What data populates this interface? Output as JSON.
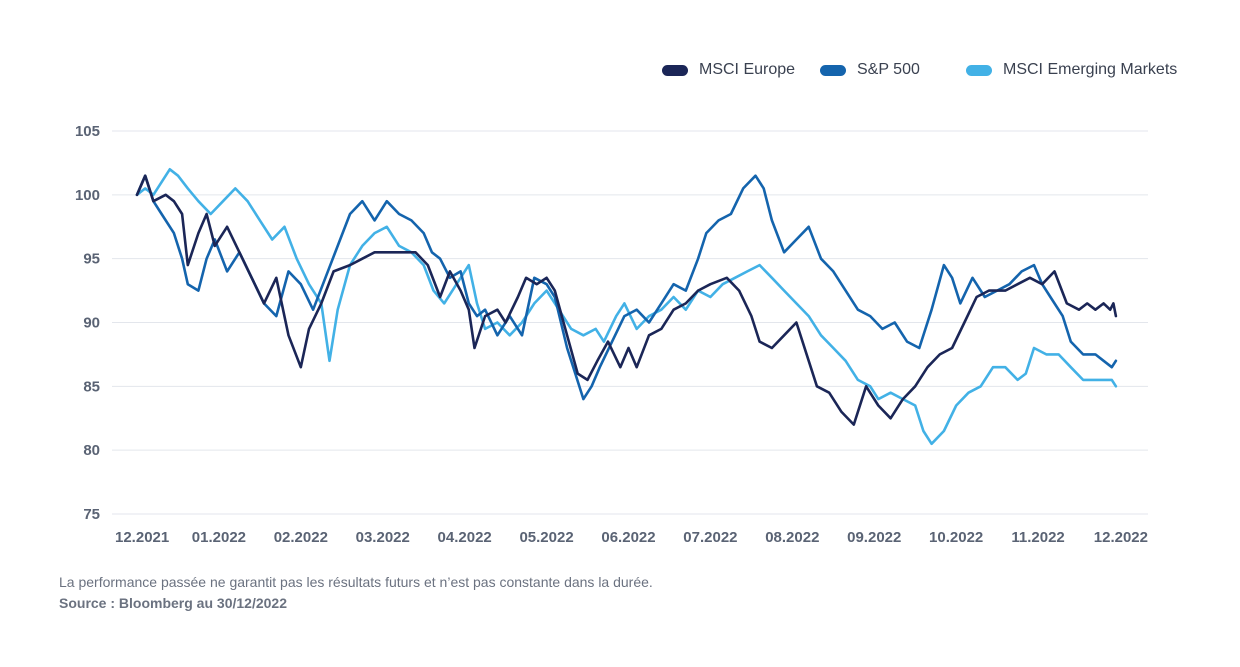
{
  "chart_data": {
    "type": "line",
    "x_ticks": [
      "12.2021",
      "01.2022",
      "02.2022",
      "03.2022",
      "04.2022",
      "05.2022",
      "06.2022",
      "07.2022",
      "08.2022",
      "09.2022",
      "10.2022",
      "11.2022",
      "12.2022"
    ],
    "y_ticks": [
      75,
      80,
      85,
      90,
      95,
      100,
      105
    ],
    "ylim": [
      75,
      105
    ],
    "grid": true,
    "legend_position": "top-right",
    "series": [
      {
        "name": "MSCI Europe",
        "color": "#1b2657",
        "points": [
          [
            0,
            100.0
          ],
          [
            0.1,
            101.5
          ],
          [
            0.2,
            99.5
          ],
          [
            0.35,
            100.0
          ],
          [
            0.45,
            99.5
          ],
          [
            0.55,
            98.5
          ],
          [
            0.62,
            94.5
          ],
          [
            0.75,
            97.0
          ],
          [
            0.85,
            98.5
          ],
          [
            0.95,
            96.0
          ],
          [
            1.1,
            97.5
          ],
          [
            1.25,
            95.5
          ],
          [
            1.4,
            93.5
          ],
          [
            1.55,
            91.5
          ],
          [
            1.7,
            93.5
          ],
          [
            1.85,
            89.0
          ],
          [
            2.0,
            86.5
          ],
          [
            2.1,
            89.5
          ],
          [
            2.25,
            91.5
          ],
          [
            2.4,
            94.0
          ],
          [
            2.6,
            94.5
          ],
          [
            2.75,
            95.0
          ],
          [
            2.9,
            95.5
          ],
          [
            3.05,
            95.5
          ],
          [
            3.25,
            95.5
          ],
          [
            3.4,
            95.5
          ],
          [
            3.55,
            94.5
          ],
          [
            3.7,
            92.0
          ],
          [
            3.82,
            94.0
          ],
          [
            3.95,
            92.5
          ],
          [
            4.05,
            91.0
          ],
          [
            4.12,
            88.0
          ],
          [
            4.25,
            90.5
          ],
          [
            4.4,
            91.0
          ],
          [
            4.5,
            90.0
          ],
          [
            4.65,
            92.0
          ],
          [
            4.75,
            93.5
          ],
          [
            4.88,
            93.0
          ],
          [
            5.0,
            93.5
          ],
          [
            5.1,
            92.5
          ],
          [
            5.25,
            89.0
          ],
          [
            5.38,
            86.0
          ],
          [
            5.5,
            85.5
          ],
          [
            5.62,
            87.0
          ],
          [
            5.75,
            88.5
          ],
          [
            5.9,
            86.5
          ],
          [
            6.0,
            88.0
          ],
          [
            6.1,
            86.5
          ],
          [
            6.25,
            89.0
          ],
          [
            6.4,
            89.5
          ],
          [
            6.55,
            91.0
          ],
          [
            6.7,
            91.5
          ],
          [
            6.85,
            92.5
          ],
          [
            7.0,
            93.0
          ],
          [
            7.2,
            93.5
          ],
          [
            7.35,
            92.5
          ],
          [
            7.5,
            90.5
          ],
          [
            7.6,
            88.5
          ],
          [
            7.75,
            88.0
          ],
          [
            7.9,
            89.0
          ],
          [
            8.05,
            90.0
          ],
          [
            8.2,
            87.0
          ],
          [
            8.3,
            85.0
          ],
          [
            8.45,
            84.5
          ],
          [
            8.6,
            83.0
          ],
          [
            8.75,
            82.0
          ],
          [
            8.9,
            85.0
          ],
          [
            9.05,
            83.5
          ],
          [
            9.2,
            82.5
          ],
          [
            9.35,
            84.0
          ],
          [
            9.5,
            85.0
          ],
          [
            9.65,
            86.5
          ],
          [
            9.8,
            87.5
          ],
          [
            9.95,
            88.0
          ],
          [
            10.1,
            90.0
          ],
          [
            10.25,
            92.0
          ],
          [
            10.4,
            92.5
          ],
          [
            10.6,
            92.5
          ],
          [
            10.75,
            93.0
          ],
          [
            10.9,
            93.5
          ],
          [
            11.05,
            93.0
          ],
          [
            11.2,
            94.0
          ],
          [
            11.35,
            91.5
          ],
          [
            11.5,
            91.0
          ],
          [
            11.6,
            91.5
          ],
          [
            11.7,
            91.0
          ],
          [
            11.8,
            91.5
          ],
          [
            11.88,
            91.0
          ],
          [
            11.92,
            91.5
          ],
          [
            11.95,
            90.5
          ]
        ]
      },
      {
        "name": "S&P 500",
        "color": "#1464ad",
        "points": [
          [
            0,
            100.0
          ],
          [
            0.1,
            101.5
          ],
          [
            0.2,
            99.5
          ],
          [
            0.3,
            98.5
          ],
          [
            0.45,
            97.0
          ],
          [
            0.55,
            95.0
          ],
          [
            0.62,
            93.0
          ],
          [
            0.75,
            92.5
          ],
          [
            0.85,
            95.0
          ],
          [
            0.95,
            96.5
          ],
          [
            1.1,
            94.0
          ],
          [
            1.25,
            95.5
          ],
          [
            1.4,
            93.5
          ],
          [
            1.55,
            91.5
          ],
          [
            1.7,
            90.5
          ],
          [
            1.85,
            94.0
          ],
          [
            2.0,
            93.0
          ],
          [
            2.15,
            91.0
          ],
          [
            2.3,
            93.5
          ],
          [
            2.45,
            96.0
          ],
          [
            2.6,
            98.5
          ],
          [
            2.75,
            99.5
          ],
          [
            2.9,
            98.0
          ],
          [
            3.05,
            99.5
          ],
          [
            3.2,
            98.5
          ],
          [
            3.35,
            98.0
          ],
          [
            3.5,
            97.0
          ],
          [
            3.6,
            95.5
          ],
          [
            3.7,
            95.0
          ],
          [
            3.82,
            93.5
          ],
          [
            3.95,
            94.0
          ],
          [
            4.05,
            91.5
          ],
          [
            4.15,
            90.5
          ],
          [
            4.25,
            91.0
          ],
          [
            4.4,
            89.0
          ],
          [
            4.55,
            90.5
          ],
          [
            4.7,
            89.0
          ],
          [
            4.85,
            93.5
          ],
          [
            5.0,
            93.0
          ],
          [
            5.1,
            92.0
          ],
          [
            5.25,
            88.0
          ],
          [
            5.35,
            86.0
          ],
          [
            5.45,
            84.0
          ],
          [
            5.55,
            85.0
          ],
          [
            5.65,
            86.5
          ],
          [
            5.8,
            88.5
          ],
          [
            5.95,
            90.5
          ],
          [
            6.1,
            91.0
          ],
          [
            6.25,
            90.0
          ],
          [
            6.4,
            91.5
          ],
          [
            6.55,
            93.0
          ],
          [
            6.7,
            92.5
          ],
          [
            6.85,
            95.0
          ],
          [
            6.95,
            97.0
          ],
          [
            7.1,
            98.0
          ],
          [
            7.25,
            98.5
          ],
          [
            7.4,
            100.5
          ],
          [
            7.55,
            101.5
          ],
          [
            7.65,
            100.5
          ],
          [
            7.75,
            98.0
          ],
          [
            7.9,
            95.5
          ],
          [
            8.05,
            96.5
          ],
          [
            8.2,
            97.5
          ],
          [
            8.35,
            95.0
          ],
          [
            8.5,
            94.0
          ],
          [
            8.65,
            92.5
          ],
          [
            8.8,
            91.0
          ],
          [
            8.95,
            90.5
          ],
          [
            9.1,
            89.5
          ],
          [
            9.25,
            90.0
          ],
          [
            9.4,
            88.5
          ],
          [
            9.55,
            88.0
          ],
          [
            9.7,
            91.0
          ],
          [
            9.85,
            94.5
          ],
          [
            9.95,
            93.5
          ],
          [
            10.05,
            91.5
          ],
          [
            10.2,
            93.5
          ],
          [
            10.35,
            92.0
          ],
          [
            10.5,
            92.5
          ],
          [
            10.65,
            93.0
          ],
          [
            10.8,
            94.0
          ],
          [
            10.95,
            94.5
          ],
          [
            11.05,
            93.0
          ],
          [
            11.15,
            92.0
          ],
          [
            11.3,
            90.5
          ],
          [
            11.4,
            88.5
          ],
          [
            11.55,
            87.5
          ],
          [
            11.7,
            87.5
          ],
          [
            11.8,
            87.0
          ],
          [
            11.9,
            86.5
          ],
          [
            11.95,
            87.0
          ]
        ]
      },
      {
        "name": "MSCI Emerging Markets",
        "color": "#42b1e6",
        "points": [
          [
            0,
            100.0
          ],
          [
            0.1,
            100.5
          ],
          [
            0.2,
            100.0
          ],
          [
            0.3,
            101.0
          ],
          [
            0.4,
            102.0
          ],
          [
            0.5,
            101.5
          ],
          [
            0.62,
            100.5
          ],
          [
            0.75,
            99.5
          ],
          [
            0.9,
            98.5
          ],
          [
            1.05,
            99.5
          ],
          [
            1.2,
            100.5
          ],
          [
            1.35,
            99.5
          ],
          [
            1.5,
            98.0
          ],
          [
            1.65,
            96.5
          ],
          [
            1.8,
            97.5
          ],
          [
            1.95,
            95.0
          ],
          [
            2.1,
            93.0
          ],
          [
            2.25,
            91.5
          ],
          [
            2.35,
            87.0
          ],
          [
            2.45,
            91.0
          ],
          [
            2.6,
            94.5
          ],
          [
            2.75,
            96.0
          ],
          [
            2.9,
            97.0
          ],
          [
            3.05,
            97.5
          ],
          [
            3.2,
            96.0
          ],
          [
            3.35,
            95.5
          ],
          [
            3.5,
            94.5
          ],
          [
            3.62,
            92.5
          ],
          [
            3.75,
            91.5
          ],
          [
            3.9,
            93.0
          ],
          [
            4.05,
            94.5
          ],
          [
            4.15,
            91.5
          ],
          [
            4.25,
            89.5
          ],
          [
            4.4,
            90.0
          ],
          [
            4.55,
            89.0
          ],
          [
            4.7,
            90.0
          ],
          [
            4.85,
            91.5
          ],
          [
            5.0,
            92.5
          ],
          [
            5.15,
            91.0
          ],
          [
            5.3,
            89.5
          ],
          [
            5.45,
            89.0
          ],
          [
            5.6,
            89.5
          ],
          [
            5.7,
            88.5
          ],
          [
            5.85,
            90.5
          ],
          [
            5.95,
            91.5
          ],
          [
            6.1,
            89.5
          ],
          [
            6.25,
            90.5
          ],
          [
            6.4,
            91.0
          ],
          [
            6.55,
            92.0
          ],
          [
            6.7,
            91.0
          ],
          [
            6.85,
            92.5
          ],
          [
            7.0,
            92.0
          ],
          [
            7.15,
            93.0
          ],
          [
            7.3,
            93.5
          ],
          [
            7.45,
            94.0
          ],
          [
            7.6,
            94.5
          ],
          [
            7.75,
            93.5
          ],
          [
            7.9,
            92.5
          ],
          [
            8.05,
            91.5
          ],
          [
            8.2,
            90.5
          ],
          [
            8.35,
            89.0
          ],
          [
            8.5,
            88.0
          ],
          [
            8.65,
            87.0
          ],
          [
            8.8,
            85.5
          ],
          [
            8.95,
            85.0
          ],
          [
            9.05,
            84.0
          ],
          [
            9.2,
            84.5
          ],
          [
            9.35,
            84.0
          ],
          [
            9.5,
            83.5
          ],
          [
            9.6,
            81.5
          ],
          [
            9.7,
            80.5
          ],
          [
            9.85,
            81.5
          ],
          [
            10.0,
            83.5
          ],
          [
            10.15,
            84.5
          ],
          [
            10.3,
            85.0
          ],
          [
            10.45,
            86.5
          ],
          [
            10.6,
            86.5
          ],
          [
            10.75,
            85.5
          ],
          [
            10.85,
            86.0
          ],
          [
            10.95,
            88.0
          ],
          [
            11.1,
            87.5
          ],
          [
            11.25,
            87.5
          ],
          [
            11.4,
            86.5
          ],
          [
            11.55,
            85.5
          ],
          [
            11.7,
            85.5
          ],
          [
            11.8,
            85.5
          ],
          [
            11.9,
            85.5
          ],
          [
            11.95,
            85.0
          ]
        ]
      }
    ]
  },
  "footer": {
    "note": "La performance passée ne garantit pas les résultats futurs et n’est pas constante dans la durée.",
    "source": "Source : Bloomberg au 30/12/2022"
  }
}
